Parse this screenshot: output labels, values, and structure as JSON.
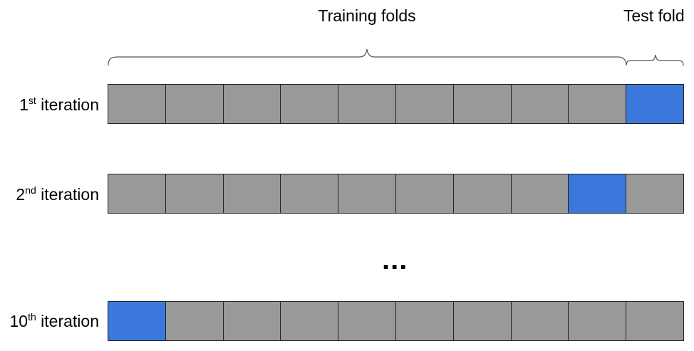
{
  "headers": {
    "training": "Training folds",
    "test": "Test fold"
  },
  "colors": {
    "train_fold": "#999999",
    "test_fold": "#3b78db",
    "border": "#222222"
  },
  "rows": [
    {
      "num": "1",
      "sup": "st",
      "suffix": " iteration",
      "test_fold_index": 9
    },
    {
      "num": "2",
      "sup": "nd",
      "suffix": " iteration",
      "test_fold_index": 8
    },
    {
      "num": "10",
      "sup": "th",
      "suffix": " iteration",
      "test_fold_index": 0
    }
  ],
  "fold_count": 10,
  "ellipsis": "..."
}
